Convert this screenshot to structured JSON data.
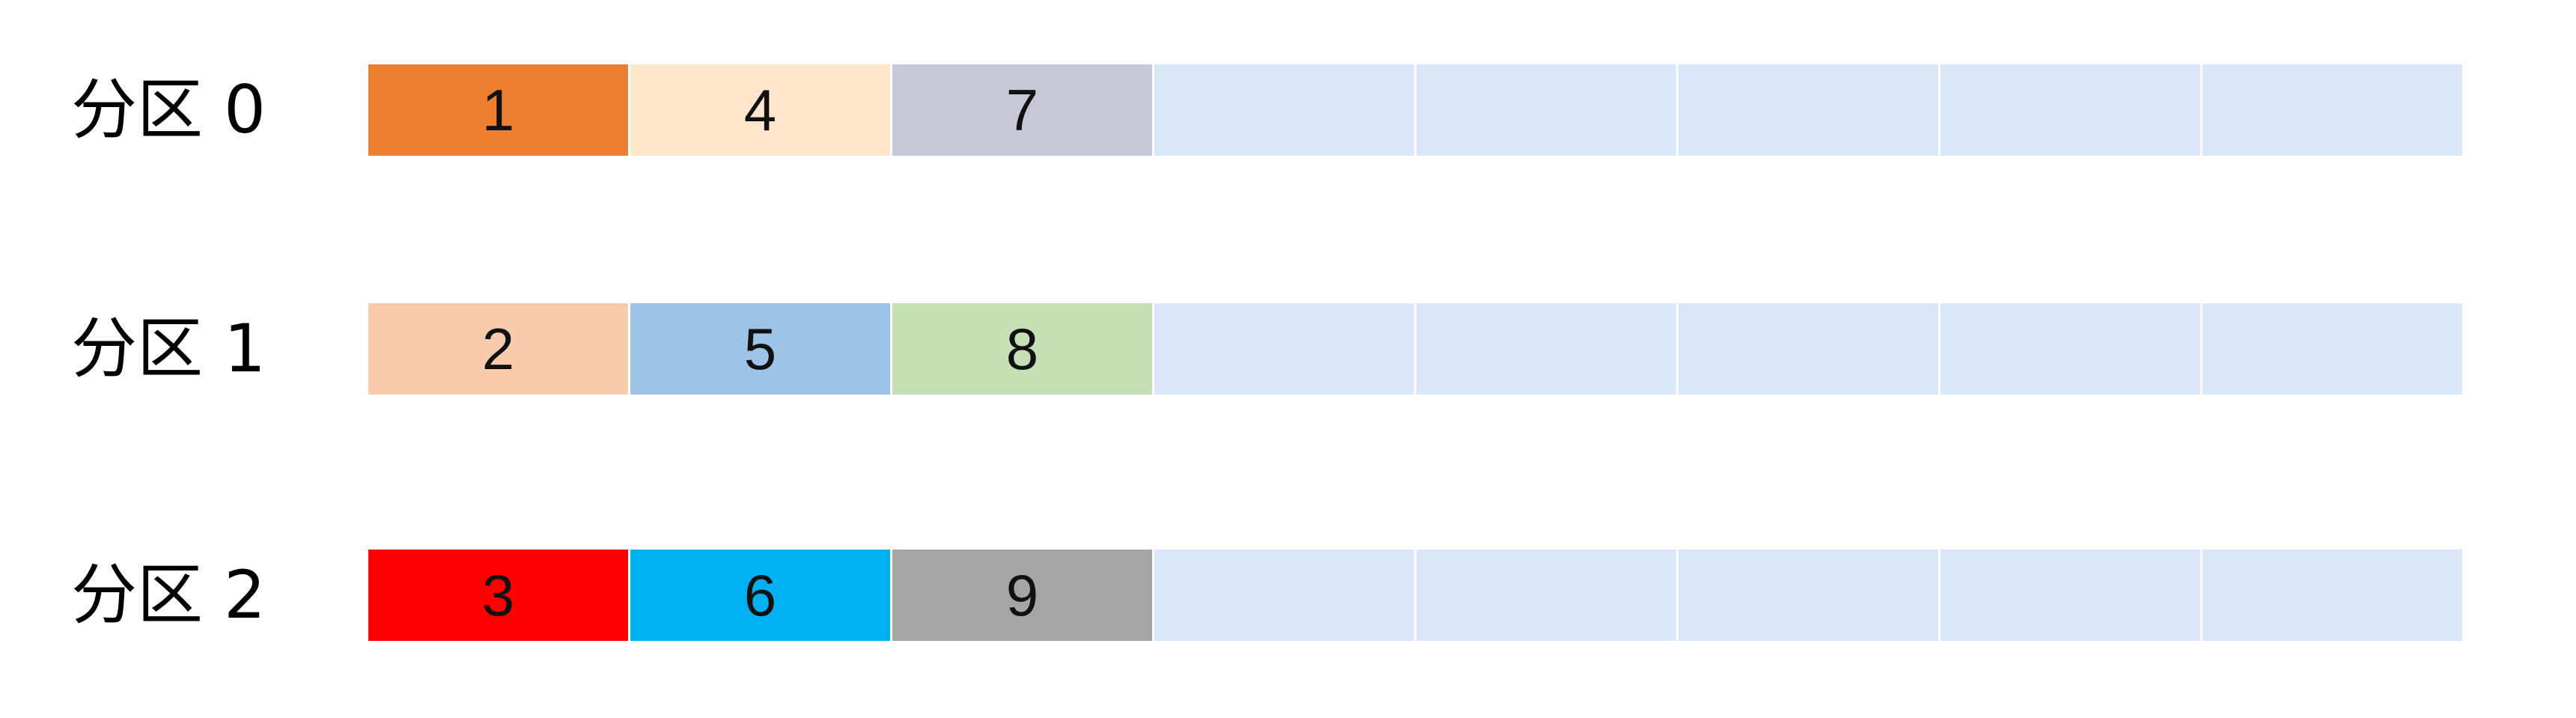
{
  "empty_color": "#DAE7F8",
  "partitions": [
    {
      "label": "分区 0",
      "cells": [
        {
          "value": "1",
          "color": "#ED7D31"
        },
        {
          "value": "4",
          "color": "#FFE6CD"
        },
        {
          "value": "7",
          "color": "#C8C7D8"
        }
      ]
    },
    {
      "label": "分区 1",
      "cells": [
        {
          "value": "2",
          "color": "#F7CBAC"
        },
        {
          "value": "5",
          "color": "#9DC3E6"
        },
        {
          "value": "8",
          "color": "#C5E0B4"
        }
      ]
    },
    {
      "label": "分区 2",
      "cells": [
        {
          "value": "3",
          "color": "#FF0000"
        },
        {
          "value": "6",
          "color": "#00B0F0"
        },
        {
          "value": "9",
          "color": "#A5A5A5"
        }
      ]
    }
  ],
  "total_slots": 8
}
